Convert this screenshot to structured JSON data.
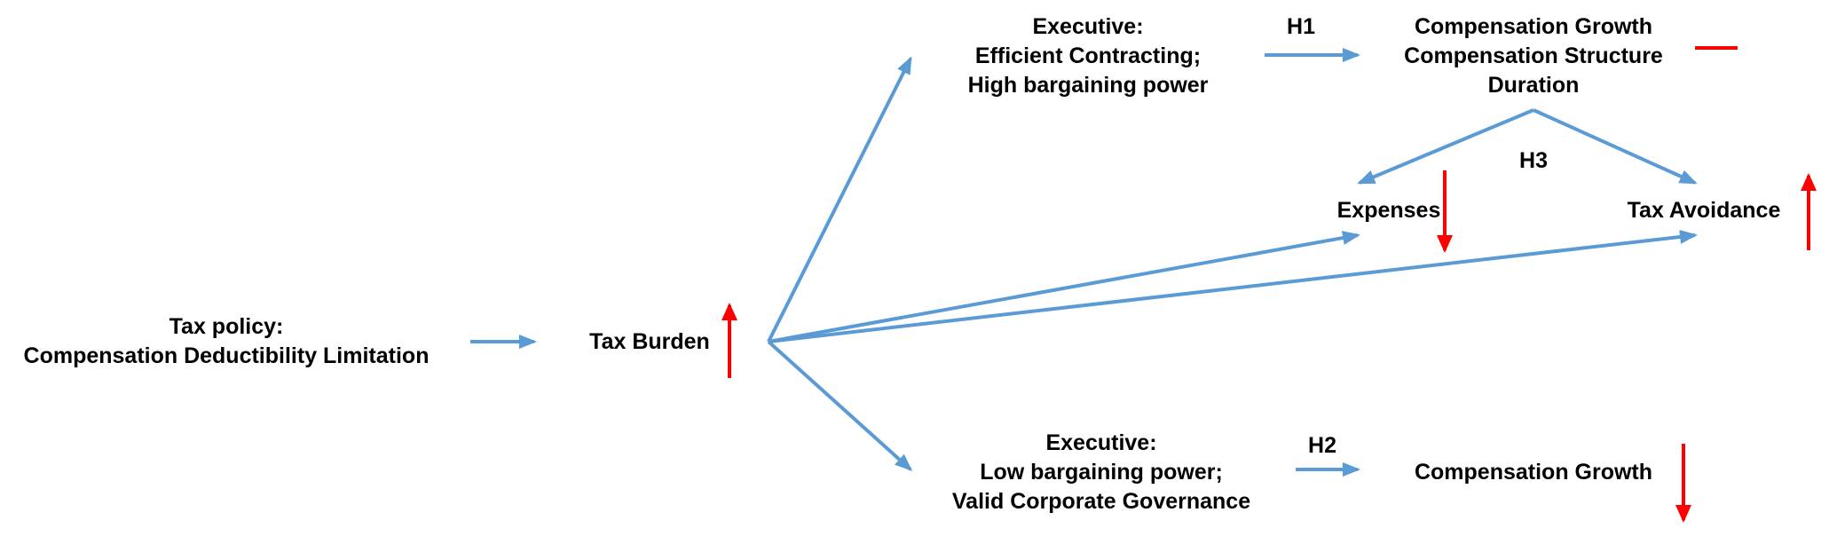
{
  "colors": {
    "arrow": "#5b9bd5",
    "indicator": "#ff0000",
    "text": "#000000"
  },
  "nodes": {
    "tax_policy": {
      "lines": [
        "Tax policy:",
        "Compensation  Deductibility Limitation"
      ]
    },
    "tax_burden": {
      "label": "Tax Burden",
      "indicator": "increase"
    },
    "executive_high": {
      "lines": [
        "Executive:",
        "Efficient Contracting;",
        "High bargaining power"
      ]
    },
    "outcome_h1": {
      "lines": [
        "Compensation Growth",
        "Compensation Structure",
        "Duration"
      ],
      "indicator": "decrease-dash"
    },
    "expenses": {
      "label": "Expenses",
      "indicator": "decrease"
    },
    "tax_avoidance": {
      "label": "Tax Avoidance",
      "indicator": "increase"
    },
    "executive_low": {
      "lines": [
        "Executive:",
        "Low bargaining power;",
        "Valid Corporate Governance"
      ]
    },
    "outcome_h2": {
      "label": "Compensation Growth",
      "indicator": "decrease"
    }
  },
  "hypotheses": {
    "h1": "H1",
    "h2": "H2",
    "h3": "H3"
  }
}
